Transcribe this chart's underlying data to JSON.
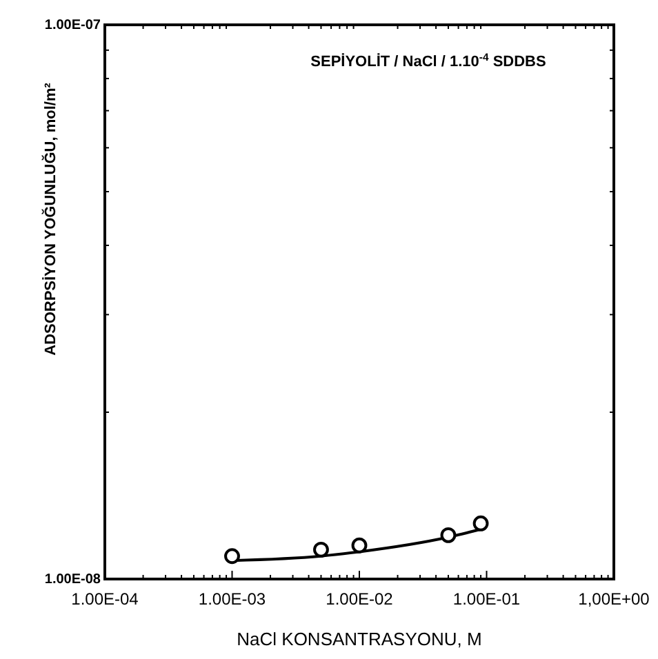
{
  "chart_data": {
    "type": "scatter",
    "title": "SEPİYOLİT / NaCl / 1.10$^{-4}$ SDDBS",
    "xlabel": "NaCl KONSANTRASYONU, M",
    "ylabel": "ADSORPSİYON YOĞUNLUĞU, mol/m²",
    "log": "xy",
    "xlim": [
      0.0001,
      1
    ],
    "ylim": [
      1e-08,
      1e-07
    ],
    "xticks": [
      {
        "value": 0.0001,
        "label": "1.00E-04"
      },
      {
        "value": 0.001,
        "label": "1.00E-03"
      },
      {
        "value": 0.01,
        "label": "1.00E-02"
      },
      {
        "value": 0.1,
        "label": "1.00E-01"
      },
      {
        "value": 1,
        "label": "1,00E+00"
      }
    ],
    "yticks": [
      {
        "value": 1e-08,
        "label": "1.00E-08"
      },
      {
        "value": 1e-07,
        "label": "1.00E-07"
      }
    ],
    "grid": false,
    "series": [
      {
        "color": "#000000",
        "marker": "circle",
        "x": [
          0.001,
          0.005,
          0.01,
          0.05,
          0.09
        ],
        "values": [
          1.1e-08,
          1.13e-08,
          1.15e-08,
          1.2e-08,
          1.26e-08
        ]
      },
      {
        "type": "line",
        "color": "#000000",
        "marker": "none",
        "line_style": "solid",
        "x": [
          0.001,
          0.005,
          0.01,
          0.05,
          0.09
        ],
        "values": [
          1.08e-08,
          1.1e-08,
          1.12e-08,
          1.19e-08,
          1.23e-08
        ]
      }
    ]
  }
}
